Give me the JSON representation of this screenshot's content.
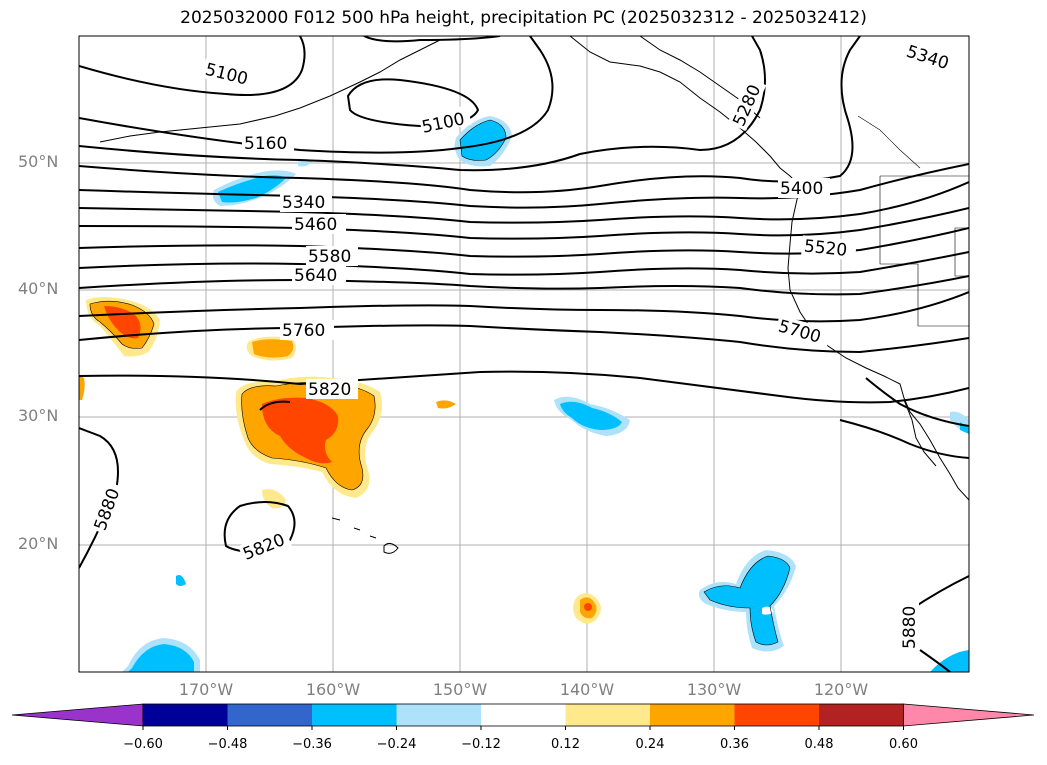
{
  "title": "2025032000 F012 500 hPa height, precipitation PC (2025032312 - 2025032412)",
  "lat_labels": [
    "50°N",
    "40°N",
    "30°N",
    "20°N"
  ],
  "lon_labels": [
    "170°W",
    "160°W",
    "150°W",
    "140°W",
    "130°W",
    "120°W"
  ],
  "contour_labels": [
    "5100",
    "5100",
    "5160",
    "5340",
    "5460",
    "5580",
    "5640",
    "5760",
    "5820",
    "5820",
    "5880",
    "5880",
    "5520",
    "5700",
    "5340",
    "5280",
    "5400"
  ],
  "colorbar": {
    "ticks": [
      "−0.60",
      "−0.48",
      "−0.36",
      "−0.24",
      "−0.12",
      "0.12",
      "0.24",
      "0.36",
      "0.48",
      "0.60"
    ],
    "colors": [
      "#9933cc",
      "#000099",
      "#3366cc",
      "#00bfff",
      "#aee2fa",
      "#ffffff",
      "#ffe98c",
      "#ffa500",
      "#ff4500",
      "#b22222",
      "#ff88aa"
    ]
  },
  "colors": {
    "contour": "#000000",
    "grid": "#b0b0b0",
    "tick_label": "#808080"
  }
}
